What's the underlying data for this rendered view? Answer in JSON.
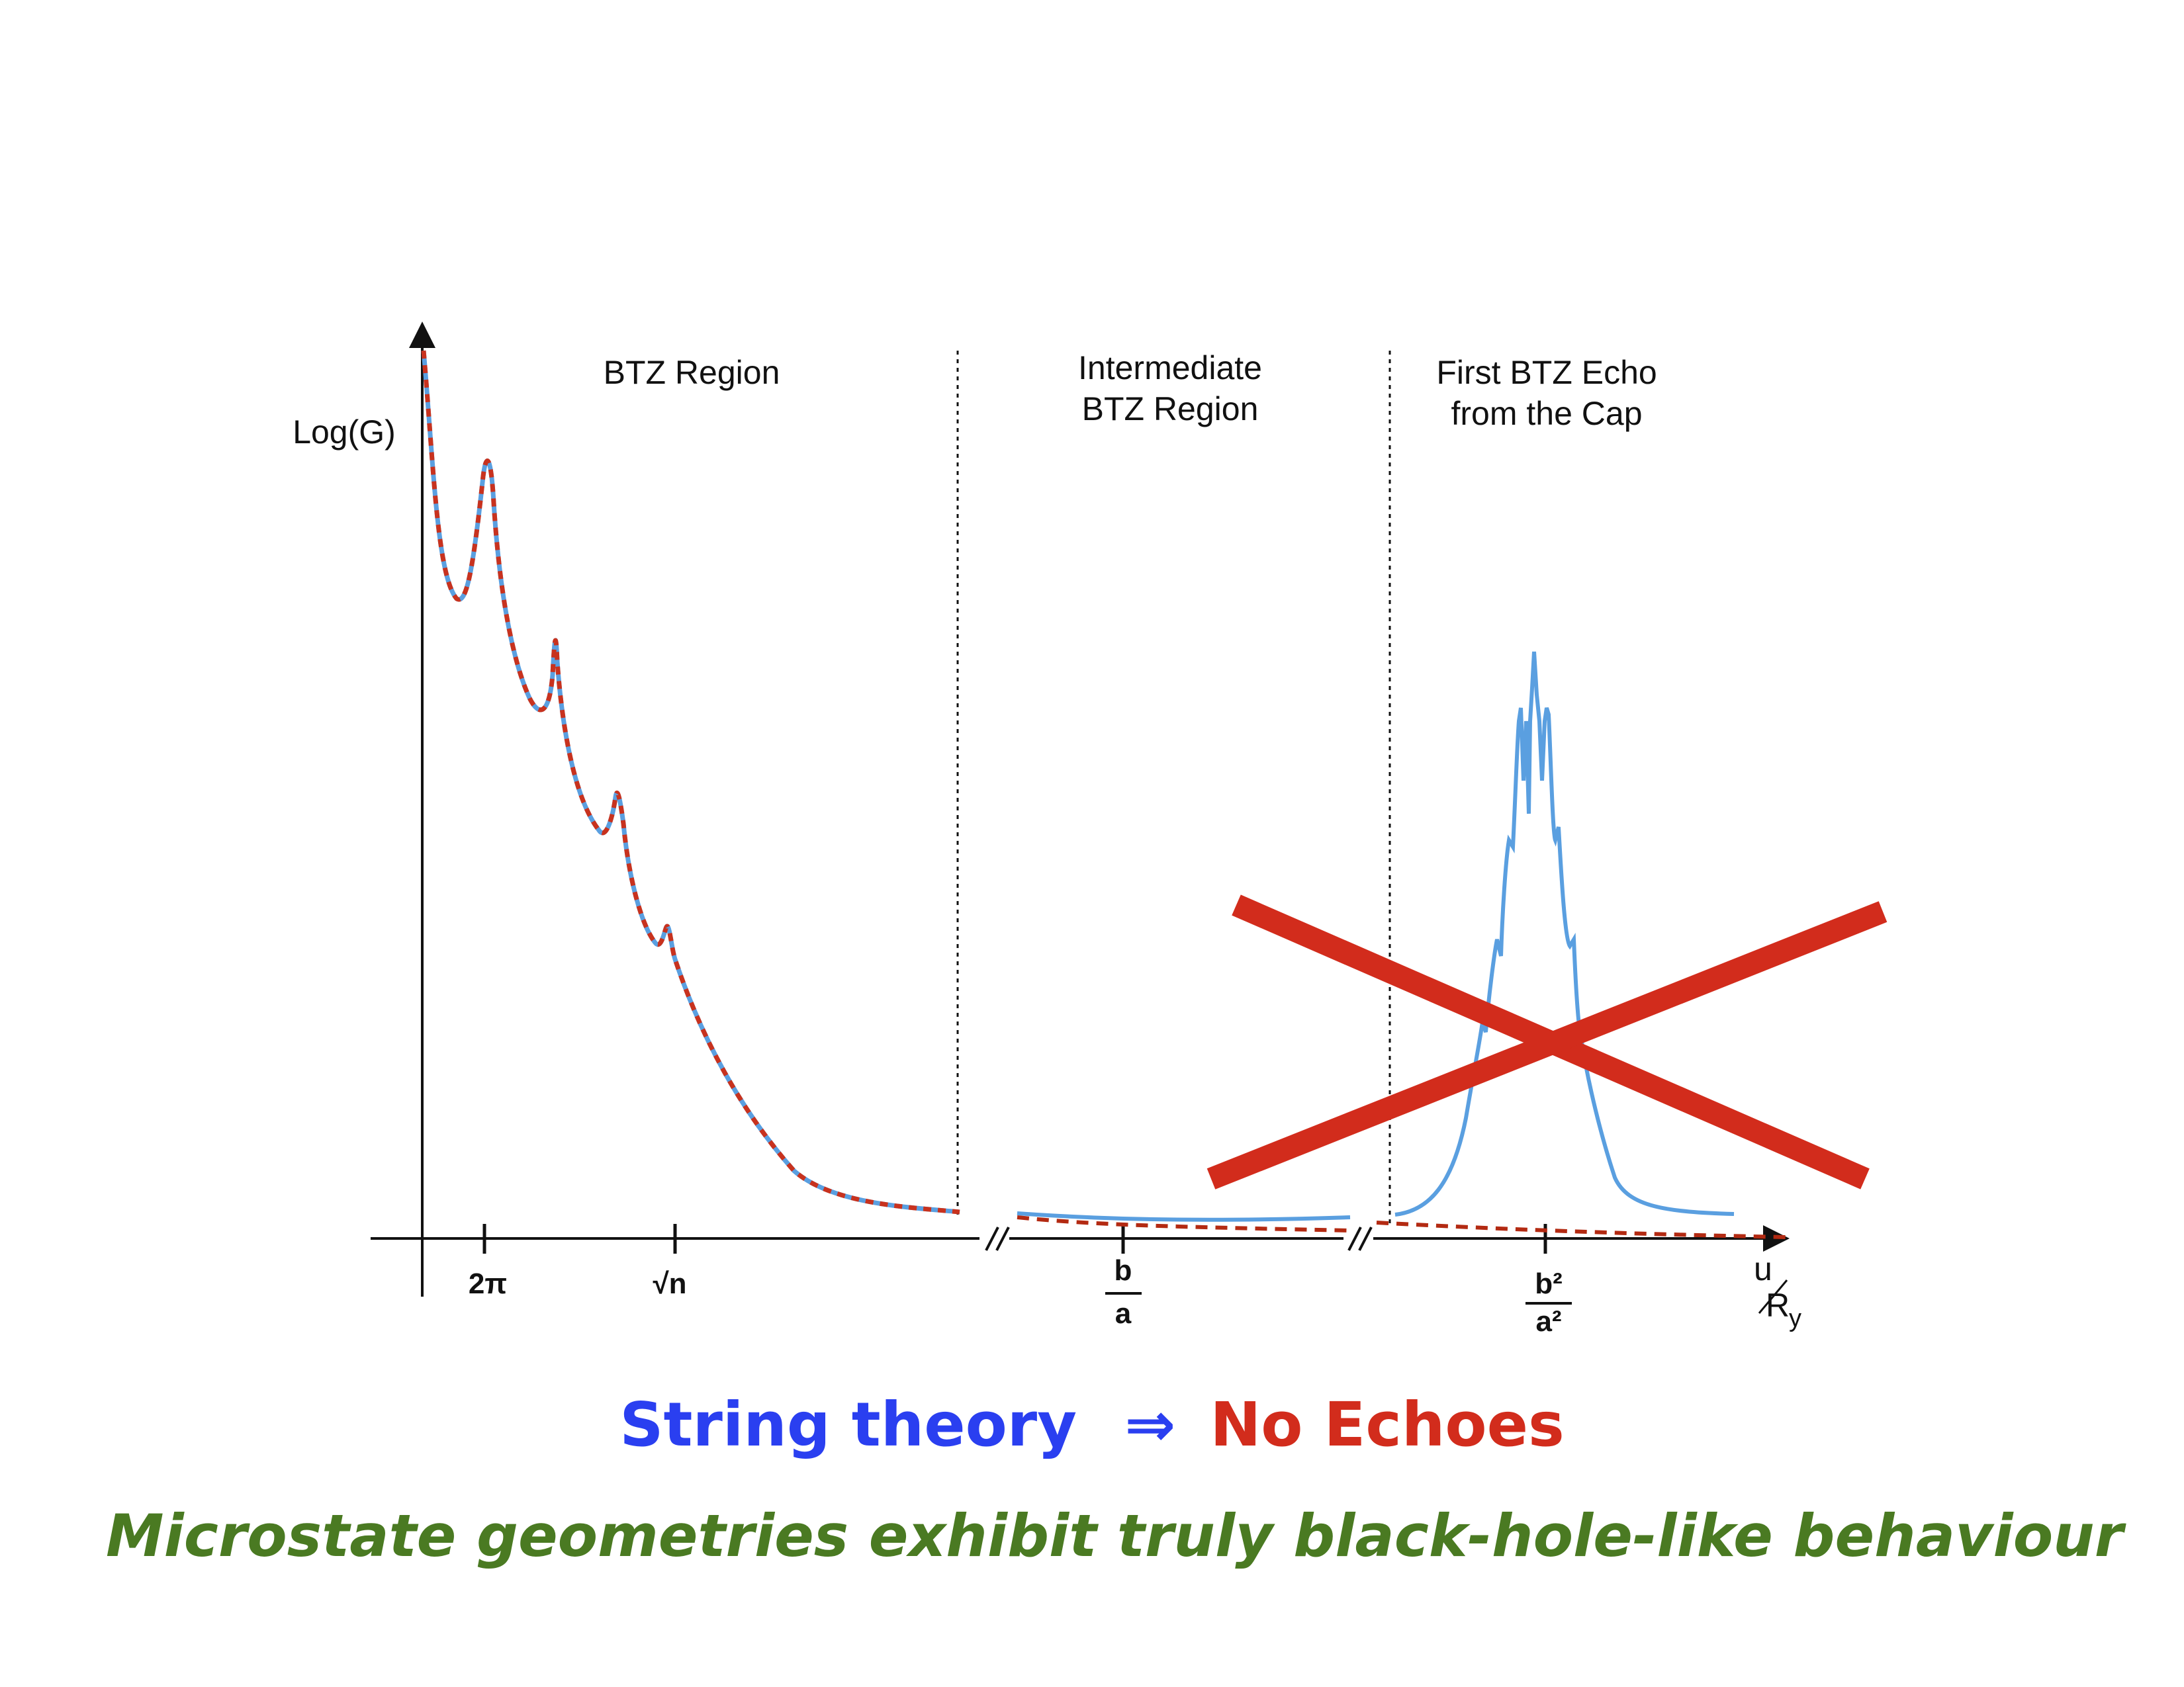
{
  "regions": {
    "btz": "BTZ Region",
    "intermediate_line1": "Intermediate",
    "intermediate_line2": "BTZ Region",
    "echo_line1": "First BTZ Echo",
    "echo_line2": "from the Cap"
  },
  "axes": {
    "y_label": "Log(G)",
    "x_label_num": "u",
    "x_label_den": "R",
    "x_label_sub": "y"
  },
  "ticks": {
    "two_pi": "2π",
    "sqrt_n": "√n",
    "b_over_a_num": "b",
    "b_over_a_den": "a",
    "b2_over_a2_num": "b²",
    "b2_over_a2_den": "a²"
  },
  "headline": {
    "part1": "String theory",
    "arrow": "⇒",
    "part2": "No Echoes",
    "subline": "Microstate geometries exhibit truly black-hole-like behaviour"
  },
  "colors": {
    "blue_curve": "#5a9fe0",
    "red_curve": "#c8321e",
    "cross": "#d22c1c",
    "headline_blue": "#2a3ff0",
    "headline_red": "#d22c1c",
    "subline_green": "#4a7a22"
  },
  "curves": {
    "blue_label": "String theory",
    "red_label": "No Echoes"
  }
}
